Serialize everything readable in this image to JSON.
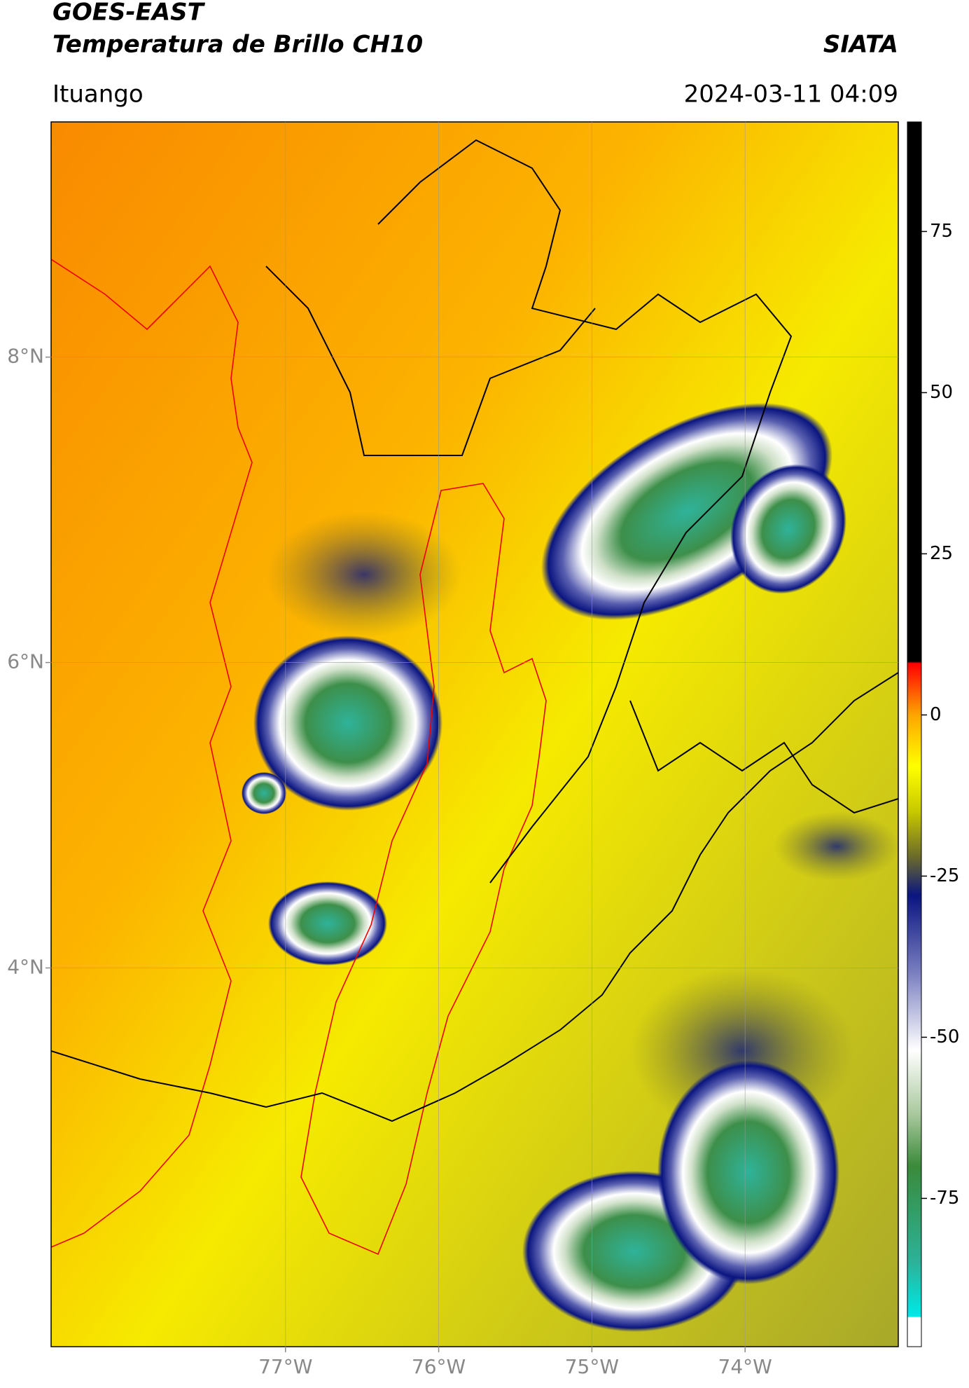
{
  "header": {
    "title": "GOES-EAST",
    "subtitle": "Temperatura de Brillo CH10",
    "brand": "SIATA",
    "location": "Ituango",
    "datetime": "2024-03-11 04:09"
  },
  "map": {
    "xlim": [
      -78.53,
      -73.0
    ],
    "ylim": [
      1.52,
      9.54
    ],
    "xticks": [
      {
        "value": -77,
        "label": "77°W"
      },
      {
        "value": -76,
        "label": "76°W"
      },
      {
        "value": -75,
        "label": "75°W"
      },
      {
        "value": -74,
        "label": "74°W"
      }
    ],
    "yticks": [
      {
        "value": 8,
        "label": "8°N"
      },
      {
        "value": 6,
        "label": "6°N"
      },
      {
        "value": 4,
        "label": "4°N"
      }
    ],
    "grid": true
  },
  "colorbar": {
    "lim": [
      -98,
      92
    ],
    "ticks": [
      75,
      50,
      25,
      0,
      -25,
      -50,
      -75
    ],
    "stops": [
      {
        "value": -98,
        "color": "#ffffff"
      },
      {
        "value": -93.5,
        "color": "#ffffff"
      },
      {
        "value": -93.3,
        "color": "#00e8e8"
      },
      {
        "value": -85,
        "color": "#2bb39a"
      },
      {
        "value": -70,
        "color": "#3a8a3a"
      },
      {
        "value": -62,
        "color": "#a8c89c"
      },
      {
        "value": -52,
        "color": "#ffffff"
      },
      {
        "value": -40,
        "color": "#7a7fc0"
      },
      {
        "value": -28,
        "color": "#0a1580"
      },
      {
        "value": -22,
        "color": "#6b6b2a"
      },
      {
        "value": -15,
        "color": "#c8c800"
      },
      {
        "value": -8,
        "color": "#ffff00"
      },
      {
        "value": 0,
        "color": "#ffa500"
      },
      {
        "value": 8,
        "color": "#ff0000"
      },
      {
        "value": 8.3,
        "color": "#000000"
      },
      {
        "value": 92,
        "color": "#000000"
      }
    ]
  }
}
